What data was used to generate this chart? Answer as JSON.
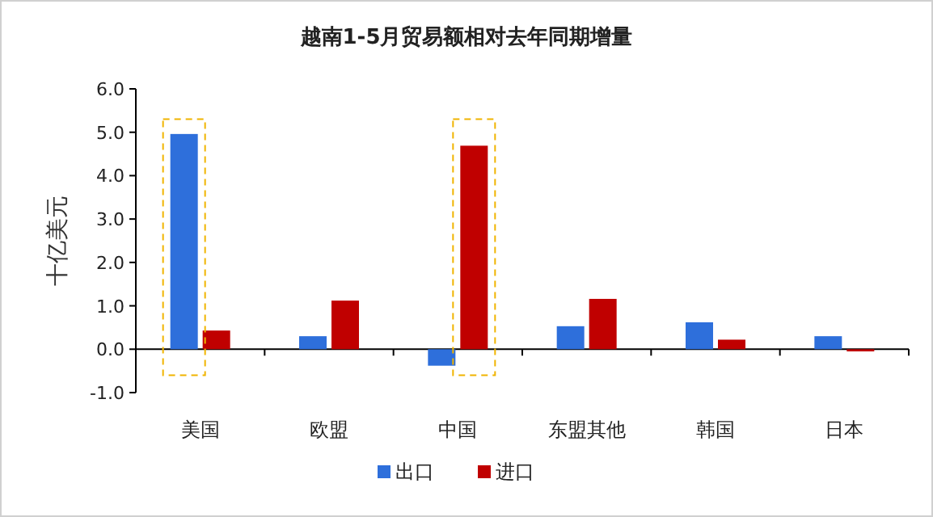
{
  "chart_data": {
    "type": "bar",
    "title": "越南1-5月贸易额相对去年同期增量",
    "ylabel": "十亿美元",
    "categories": [
      "美国",
      "欧盟",
      "中国",
      "东盟其他",
      "韩国",
      "日本"
    ],
    "series": [
      {
        "name": "出口",
        "color": "#2e6fdb",
        "values": [
          4.96,
          0.3,
          -0.38,
          0.53,
          0.62,
          0.3
        ]
      },
      {
        "name": "进口",
        "color": "#c00000",
        "values": [
          0.43,
          1.12,
          4.69,
          1.16,
          0.22,
          -0.05
        ]
      }
    ],
    "ylim": [
      -1,
      6
    ],
    "yticks": [
      {
        "value": -1,
        "label": "-1.0"
      },
      {
        "value": 0,
        "label": "0.0"
      },
      {
        "value": 1,
        "label": "1.0"
      },
      {
        "value": 2,
        "label": "2.0"
      },
      {
        "value": 3,
        "label": "3.0"
      },
      {
        "value": 4,
        "label": "4.0"
      },
      {
        "value": 5,
        "label": "5.0"
      },
      {
        "value": 6,
        "label": "6.0"
      }
    ],
    "legend": "bottom"
  }
}
